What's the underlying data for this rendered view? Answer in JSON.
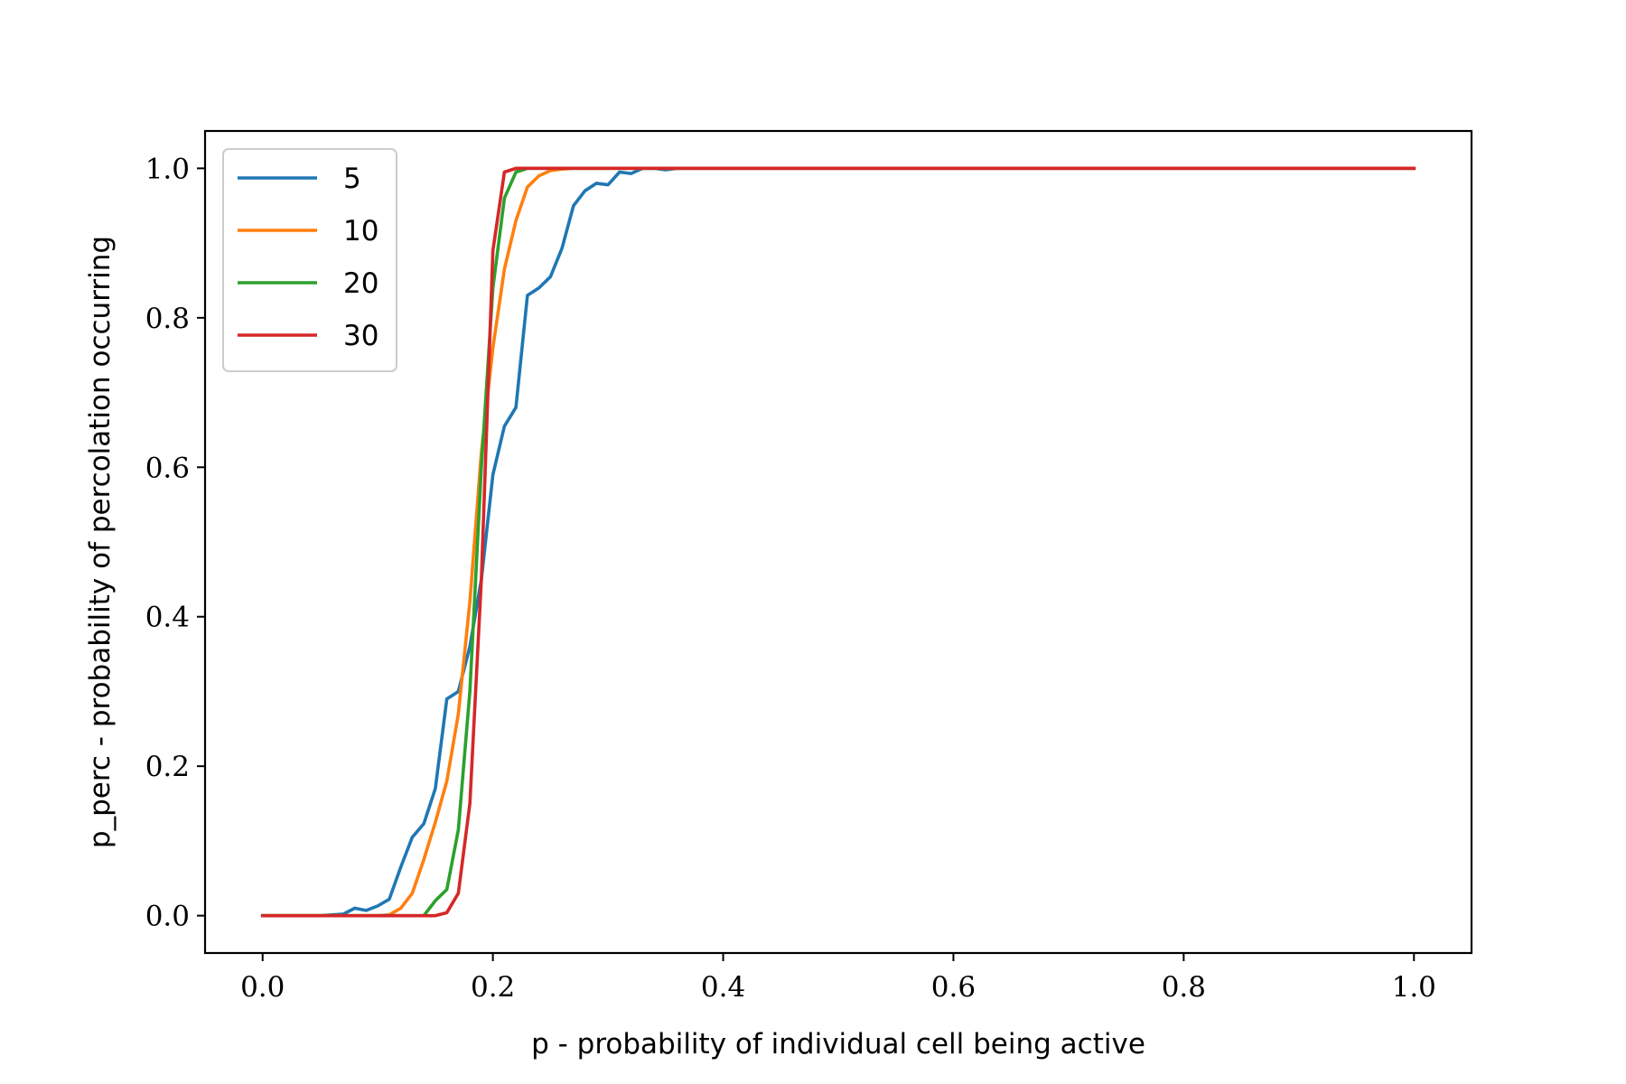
{
  "chart_data": {
    "type": "line",
    "xlabel": "p - probability of individual cell being active",
    "ylabel": "p_perc - probability of percolation occurring",
    "xlim": [
      -0.05,
      1.05
    ],
    "ylim": [
      -0.05,
      1.05
    ],
    "xticks": [
      0.0,
      0.2,
      0.4,
      0.6,
      0.8,
      1.0
    ],
    "xtick_labels": [
      "0.0",
      "0.2",
      "0.4",
      "0.6",
      "0.8",
      "1.0"
    ],
    "yticks": [
      0.0,
      0.2,
      0.4,
      0.6,
      0.8,
      1.0
    ],
    "ytick_labels": [
      "0.0",
      "0.2",
      "0.4",
      "0.6",
      "0.8",
      "1.0"
    ],
    "grid": false,
    "legend": "upper-left",
    "series": [
      {
        "name": "5",
        "color": "#1f77b4",
        "points": [
          [
            0,
            0
          ],
          [
            0.05,
            0
          ],
          [
            0.06,
            0.001
          ],
          [
            0.07,
            0.002
          ],
          [
            0.08,
            0.01
          ],
          [
            0.09,
            0.007
          ],
          [
            0.1,
            0.013
          ],
          [
            0.11,
            0.022
          ],
          [
            0.12,
            0.065
          ],
          [
            0.13,
            0.105
          ],
          [
            0.14,
            0.123
          ],
          [
            0.15,
            0.17
          ],
          [
            0.16,
            0.29
          ],
          [
            0.17,
            0.3
          ],
          [
            0.18,
            0.36
          ],
          [
            0.19,
            0.45
          ],
          [
            0.2,
            0.59
          ],
          [
            0.21,
            0.655
          ],
          [
            0.22,
            0.68
          ],
          [
            0.23,
            0.83
          ],
          [
            0.24,
            0.84
          ],
          [
            0.25,
            0.855
          ],
          [
            0.26,
            0.893
          ],
          [
            0.27,
            0.95
          ],
          [
            0.28,
            0.97
          ],
          [
            0.29,
            0.98
          ],
          [
            0.3,
            0.978
          ],
          [
            0.31,
            0.995
          ],
          [
            0.32,
            0.993
          ],
          [
            0.33,
            1.0
          ],
          [
            0.34,
            1.0
          ],
          [
            0.35,
            0.998
          ],
          [
            0.36,
            1.0
          ],
          [
            1.0,
            1.0
          ]
        ]
      },
      {
        "name": "10",
        "color": "#ff7f0e",
        "points": [
          [
            0,
            0
          ],
          [
            0.1,
            0
          ],
          [
            0.11,
            0.001
          ],
          [
            0.12,
            0.01
          ],
          [
            0.13,
            0.03
          ],
          [
            0.14,
            0.075
          ],
          [
            0.15,
            0.125
          ],
          [
            0.16,
            0.18
          ],
          [
            0.17,
            0.27
          ],
          [
            0.18,
            0.42
          ],
          [
            0.19,
            0.62
          ],
          [
            0.2,
            0.76
          ],
          [
            0.21,
            0.865
          ],
          [
            0.22,
            0.93
          ],
          [
            0.23,
            0.975
          ],
          [
            0.24,
            0.99
          ],
          [
            0.25,
            0.997
          ],
          [
            0.26,
            0.999
          ],
          [
            0.27,
            1.0
          ],
          [
            1.0,
            1.0
          ]
        ]
      },
      {
        "name": "20",
        "color": "#2ca02c",
        "points": [
          [
            0,
            0
          ],
          [
            0.14,
            0
          ],
          [
            0.15,
            0.02
          ],
          [
            0.16,
            0.035
          ],
          [
            0.17,
            0.115
          ],
          [
            0.18,
            0.3
          ],
          [
            0.19,
            0.6
          ],
          [
            0.2,
            0.84
          ],
          [
            0.21,
            0.96
          ],
          [
            0.22,
            0.995
          ],
          [
            0.23,
            1.0
          ],
          [
            1.0,
            1.0
          ]
        ]
      },
      {
        "name": "30",
        "color": "#d62728",
        "points": [
          [
            0,
            0
          ],
          [
            0.15,
            0
          ],
          [
            0.16,
            0.004
          ],
          [
            0.17,
            0.03
          ],
          [
            0.18,
            0.15
          ],
          [
            0.19,
            0.45
          ],
          [
            0.2,
            0.89
          ],
          [
            0.21,
            0.995
          ],
          [
            0.22,
            1.0
          ],
          [
            0.23,
            1.0
          ],
          [
            1.0,
            1.0
          ]
        ]
      }
    ]
  }
}
